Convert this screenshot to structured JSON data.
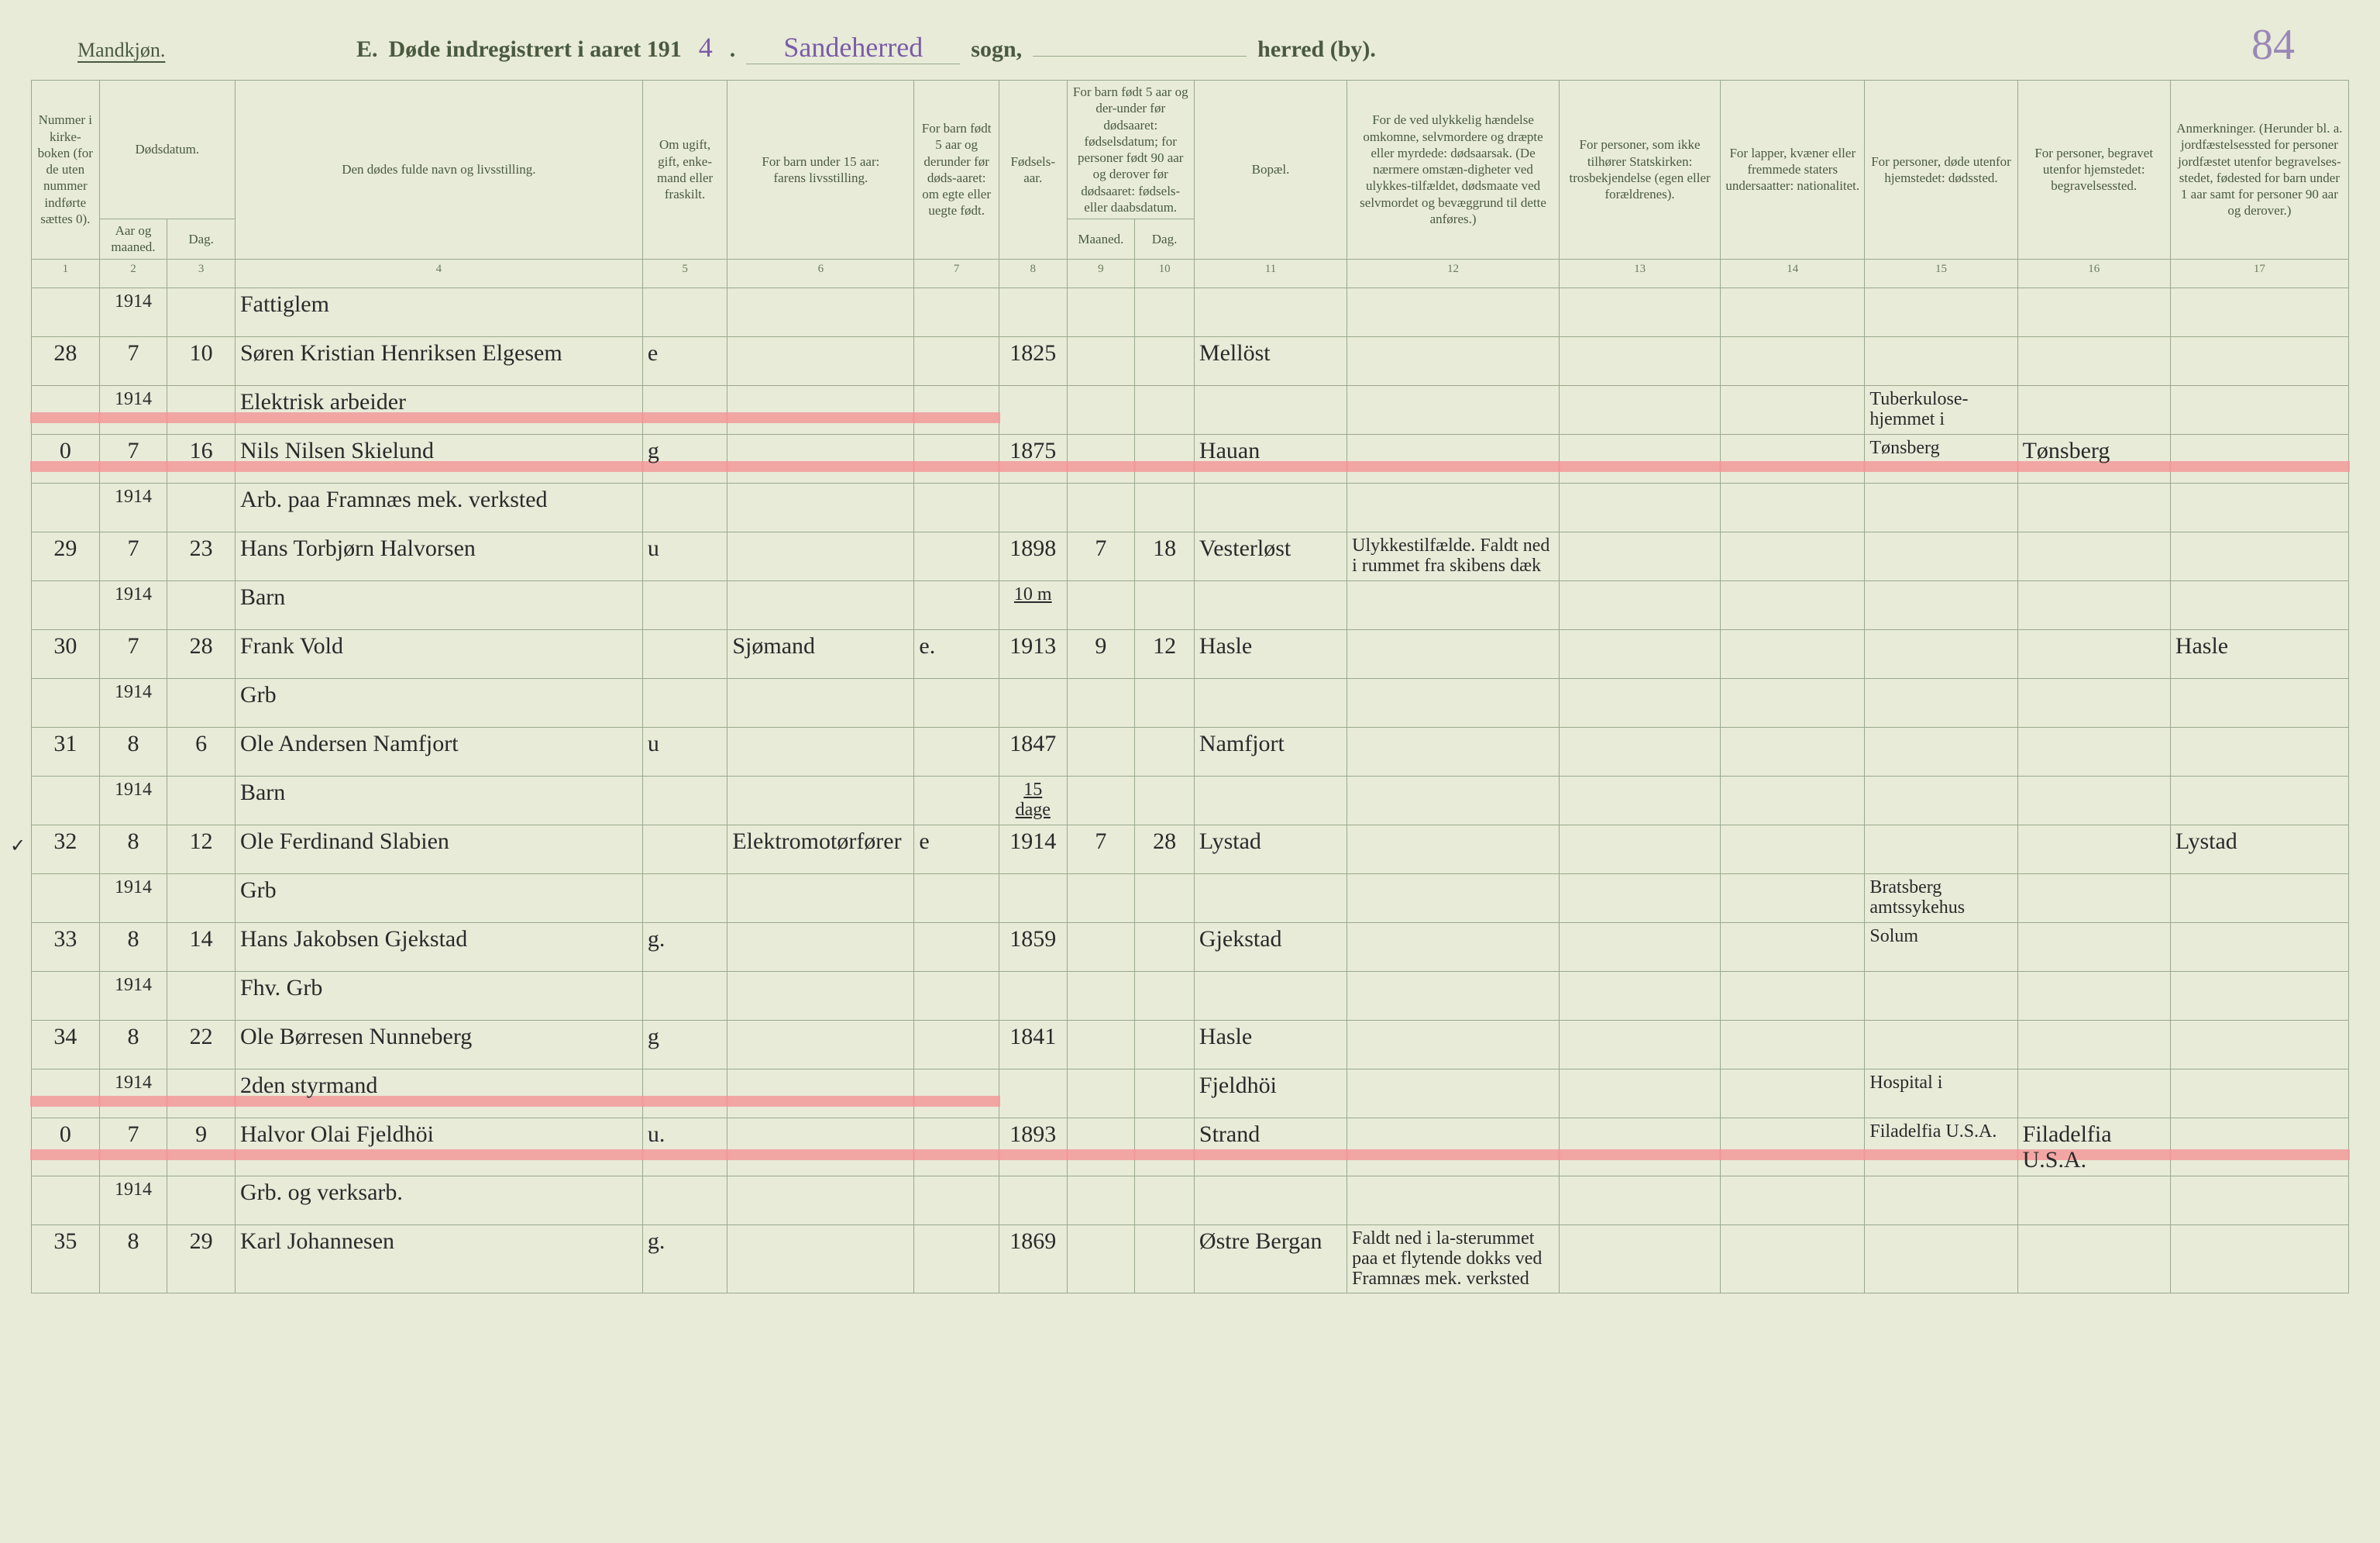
{
  "meta": {
    "gender_label": "Mandkjøn.",
    "page_number": "84",
    "title_prefix": "E.",
    "title_main": "Døde indregistrert i aaret 191",
    "year_suffix": "4",
    "sogn_value": "Sandeherred",
    "sogn_label": "sogn,",
    "herred_blank": "",
    "herred_label": "herred (by)."
  },
  "columns": {
    "c1": "Nummer i kirke-boken (for de uten nummer indførte sættes 0).",
    "c2_top": "Dødsdatum.",
    "c2": "Aar og maaned.",
    "c3": "Dag.",
    "c4": "Den dødes fulde navn og livsstilling.",
    "c5": "Om ugift, gift, enke-mand eller fraskilt.",
    "c6_top": "For barn under 15 aar:",
    "c6": "farens livsstilling.",
    "c7": "For barn født 5 aar og derunder før døds-aaret: om egte eller uegte født.",
    "c8": "Fødsels-aar.",
    "c9_top": "For barn født 5 aar og der-under før dødsaaret: fødselsdatum; for personer født 90 aar og derover før dødsaaret: fødsels- eller daabsdatum.",
    "c9": "Maaned.",
    "c10": "Dag.",
    "c11": "Bopæl.",
    "c12": "For de ved ulykkelig hændelse omkomne, selvmordere og dræpte eller myrdede: dødsaarsak. (De nærmere omstæn-digheter ved ulykkes-tilfældet, dødsmaate ved selvmordet og bevæggrund til dette anføres.)",
    "c13": "For personer, som ikke tilhører Statskirken: trosbekjendelse (egen eller forældrenes).",
    "c14": "For lapper, kvæner eller fremmede staters undersaatter: nationalitet.",
    "c15": "For personer, døde utenfor hjemstedet: dødssted.",
    "c16": "For personer, begravet utenfor hjemstedet: begravelsessted.",
    "c17": "Anmerkninger. (Herunder bl. a. jordfæstelsessted for personer jordfæstet utenfor begravelses-stedet, fødested for barn under 1 aar samt for personer 90 aar og derover.)"
  },
  "colnums": [
    "1",
    "2",
    "3",
    "4",
    "5",
    "6",
    "7",
    "8",
    "9",
    "10",
    "11",
    "12",
    "13",
    "14",
    "15",
    "16",
    "17"
  ],
  "rows": [
    {
      "num": "28",
      "year": "1914",
      "month": "7",
      "day": "10",
      "occ": "Fattiglem",
      "name": "Søren Kristian Henriksen Elgesem",
      "civ": "e",
      "c6": "",
      "c7": "",
      "c8": "1825",
      "c9": "",
      "c10": "",
      "c11": "Mellöst",
      "c12": "",
      "c13": "",
      "c14": "",
      "c15": "",
      "c16": "",
      "c17": "",
      "struck": false
    },
    {
      "num": "0",
      "year": "1914",
      "month": "7",
      "day": "16",
      "occ": "Elektrisk arbeider",
      "name": "Nils Nilsen Skielund",
      "civ": "g",
      "c6": "",
      "c7": "",
      "c8": "1875",
      "c9": "",
      "c10": "",
      "c11": "Hauan",
      "c12": "",
      "c13": "",
      "c14": "",
      "c15": "Tuberkulose-hjemmet i Tønsberg",
      "c16": "Tønsberg",
      "c17": "",
      "struck": true
    },
    {
      "num": "29",
      "year": "1914",
      "month": "7",
      "day": "23",
      "occ": "Arb. paa Framnæs mek. verksted",
      "name": "Hans Torbjørn Halvorsen",
      "civ": "u",
      "c6": "",
      "c7": "",
      "c8": "1898",
      "c9": "7",
      "c10": "18",
      "c11": "Vesterløst",
      "c12": "Ulykkestilfælde. Faldt ned i rummet fra skibens dæk",
      "c13": "",
      "c14": "",
      "c15": "",
      "c16": "",
      "c17": "",
      "struck": false
    },
    {
      "num": "30",
      "year": "1914",
      "month": "7",
      "day": "28",
      "occ": "Barn",
      "name": "Frank Vold",
      "civ": "",
      "c6": "Sjømand",
      "c7": "e.",
      "c8": "1913",
      "age_note": "10 m",
      "c9": "9",
      "c10": "12",
      "c11": "Hasle",
      "c12": "",
      "c13": "",
      "c14": "",
      "c15": "",
      "c16": "",
      "c17": "Hasle",
      "struck": false
    },
    {
      "num": "31",
      "year": "1914",
      "month": "8",
      "day": "6",
      "occ": "Grb",
      "name": "Ole Andersen Namfjort",
      "civ": "u",
      "c6": "",
      "c7": "",
      "c8": "1847",
      "c9": "",
      "c10": "",
      "c11": "Namfjort",
      "c12": "",
      "c13": "",
      "c14": "",
      "c15": "",
      "c16": "",
      "c17": "",
      "struck": false
    },
    {
      "num": "32",
      "year": "1914",
      "month": "8",
      "day": "12",
      "occ": "Barn",
      "name": "Ole Ferdinand Slabien",
      "civ": "",
      "c6": "Elektromotørfører",
      "c7": "e",
      "c8": "1914",
      "age_note": "15 dage",
      "c9": "7",
      "c10": "28",
      "c11": "Lystad",
      "c12": "",
      "c13": "",
      "c14": "",
      "c15": "",
      "c16": "",
      "c17": "Lystad",
      "struck": false,
      "tick": true
    },
    {
      "num": "33",
      "year": "1914",
      "month": "8",
      "day": "14",
      "occ": "Grb",
      "name": "Hans Jakobsen Gjekstad",
      "civ": "g.",
      "c6": "",
      "c7": "",
      "c8": "1859",
      "c9": "",
      "c10": "",
      "c11": "Gjekstad",
      "c12": "",
      "c13": "",
      "c14": "",
      "c15": "Bratsberg amtssykehus Solum",
      "c16": "",
      "c17": "",
      "struck": false
    },
    {
      "num": "34",
      "year": "1914",
      "month": "8",
      "day": "22",
      "occ": "Fhv. Grb",
      "name": "Ole Børresen Nunneberg",
      "civ": "g",
      "c6": "",
      "c7": "",
      "c8": "1841",
      "c9": "",
      "c10": "",
      "c11": "Hasle",
      "c12": "",
      "c13": "",
      "c14": "",
      "c15": "",
      "c16": "",
      "c17": "",
      "struck": false
    },
    {
      "num": "0",
      "year": "1914",
      "month": "7",
      "day": "9",
      "occ": "2den styrmand",
      "name": "Halvor Olai Fjeldhöi",
      "civ": "u.",
      "c6": "",
      "c7": "",
      "c8": "1893",
      "c9": "",
      "c10": "",
      "c11": "Fjeldhöi Strand",
      "c12": "",
      "c13": "",
      "c14": "",
      "c15": "Hospital i Filadelfia U.S.A.",
      "c16": "Filadelfia U.S.A.",
      "c17": "",
      "struck": true
    },
    {
      "num": "35",
      "year": "1914",
      "month": "8",
      "day": "29",
      "occ": "Grb. og verksarb.",
      "name": "Karl Johannesen",
      "civ": "g.",
      "c6": "",
      "c7": "",
      "c8": "1869",
      "c9": "",
      "c10": "",
      "c11": "Østre Bergan",
      "c12": "Faldt ned i la-sterummet paa et flytende dokks ved Framnæs mek. verksted",
      "c13": "",
      "c14": "",
      "c15": "",
      "c16": "",
      "c17": "",
      "struck": false
    }
  ],
  "style": {
    "page_bg": "#e8ebd8",
    "rule_color": "#9aa88c",
    "print_text": "#4a5a40",
    "hand_text": "#2a2a2a",
    "hand_purple": "#7a5ca8",
    "strike_red": "#f29a9a",
    "header_font_size_pt": 13,
    "body_hand_font_size_pt": 22,
    "title_font_size_pt": 22
  }
}
